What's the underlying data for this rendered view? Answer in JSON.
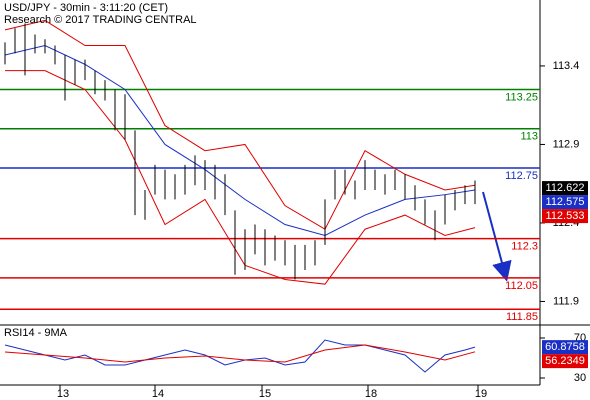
{
  "chart_data": {
    "type": "ohlc",
    "title": "USD/JPY - 30min - 3:11:20 (CET)",
    "subtitle": "Research © 2017 TRADING CENTRAL",
    "bar_color": "#000000",
    "x": [
      0,
      1,
      2,
      3,
      4,
      5,
      6,
      7,
      8,
      9,
      10,
      11,
      12,
      13,
      14,
      15,
      16,
      17,
      18,
      19,
      20,
      21,
      22,
      23,
      24,
      25,
      26,
      27,
      28,
      29,
      30,
      31,
      32,
      33,
      34,
      35,
      36,
      37,
      38,
      39,
      40,
      41,
      42,
      43,
      44,
      45,
      46,
      47
    ],
    "high": [
      113.55,
      113.64,
      113.67,
      113.6,
      113.57,
      113.53,
      113.47,
      113.44,
      113.44,
      113.37,
      113.31,
      113.25,
      113.22,
      112.99,
      112.61,
      112.77,
      112.74,
      112.71,
      112.77,
      112.83,
      112.8,
      112.77,
      112.71,
      112.48,
      112.36,
      112.39,
      112.36,
      112.32,
      112.29,
      112.26,
      112.26,
      112.29,
      112.55,
      112.74,
      112.74,
      112.67,
      112.8,
      112.74,
      112.71,
      112.74,
      112.71,
      112.64,
      112.55,
      112.48,
      112.58,
      112.61,
      112.64,
      112.67
    ],
    "low": [
      113.41,
      113.48,
      113.34,
      113.48,
      113.48,
      113.41,
      113.18,
      113.28,
      113.31,
      113.22,
      113.18,
      112.99,
      112.93,
      112.45,
      112.42,
      112.58,
      112.55,
      112.55,
      112.58,
      112.64,
      112.61,
      112.55,
      112.45,
      112.07,
      112.1,
      112.2,
      112.13,
      112.16,
      112.13,
      112.04,
      112.1,
      112.13,
      112.26,
      112.55,
      112.58,
      112.55,
      112.61,
      112.61,
      112.58,
      112.61,
      112.55,
      112.48,
      112.39,
      112.29,
      112.39,
      112.48,
      112.52,
      112.52
    ],
    "overlays": [
      {
        "color": "#e00000",
        "x": [
          0,
          4,
          8,
          12,
          16,
          20,
          24,
          28,
          32,
          36,
          40,
          44,
          47
        ],
        "values": [
          113.63,
          113.69,
          113.53,
          113.53,
          113.02,
          112.86,
          112.9,
          112.51,
          112.36,
          112.86,
          112.71,
          112.61,
          112.64
        ]
      },
      {
        "color": "#1a2fc4",
        "x": [
          0,
          4,
          8,
          12,
          16,
          20,
          24,
          28,
          32,
          36,
          40,
          44,
          47
        ],
        "values": [
          113.47,
          113.53,
          113.41,
          113.25,
          112.9,
          112.74,
          112.55,
          112.39,
          112.32,
          112.45,
          112.55,
          112.58,
          112.61
        ]
      },
      {
        "color": "#e00000",
        "x": [
          0,
          4,
          8,
          12,
          16,
          20,
          24,
          28,
          32,
          36,
          40,
          44,
          47
        ],
        "values": [
          113.37,
          113.37,
          113.25,
          112.93,
          112.39,
          112.55,
          112.13,
          112.04,
          112.01,
          112.36,
          112.45,
          112.32,
          112.37
        ]
      }
    ],
    "levels": [
      {
        "value": 113.25,
        "color": "#008000"
      },
      {
        "value": 113,
        "color": "#008000"
      },
      {
        "value": 112.75,
        "color": "#1a2fc4"
      },
      {
        "value": 112.3,
        "color": "#e00000"
      },
      {
        "value": 112.05,
        "color": "#e00000"
      },
      {
        "value": 111.85,
        "color": "#e00000"
      }
    ],
    "markers": [
      {
        "value": 112.622,
        "color": "#000000"
      },
      {
        "value": 112.575,
        "color": "#1a2fc4"
      },
      {
        "value": 112.533,
        "color": "#e00000"
      }
    ],
    "xlim": [
      -0.5,
      53.5
    ],
    "xticks": [
      {
        "value": 5.5,
        "label": "13"
      },
      {
        "value": 15,
        "label": "14"
      },
      {
        "value": 25.7,
        "label": "15"
      },
      {
        "value": 36.3,
        "label": "18"
      },
      {
        "value": 47.3,
        "label": "19"
      }
    ],
    "ylim": [
      111.75,
      113.82
    ],
    "yticks": [
      113.4,
      112.9,
      112.4,
      111.9
    ],
    "rsi": {
      "label": "RSI14 - 9MA",
      "ylim": [
        23,
        83
      ],
      "yticks": [
        70,
        30
      ],
      "series": [
        {
          "color": "#1a2fc4",
          "x": [
            0,
            2,
            4,
            6,
            8,
            10,
            12,
            14,
            16,
            18,
            20,
            22,
            24,
            26,
            28,
            30,
            32,
            34,
            36,
            38,
            40,
            42,
            44,
            46,
            47
          ],
          "values": [
            63,
            58,
            53,
            48,
            53,
            43,
            43,
            48,
            53,
            58,
            53,
            43,
            48,
            50,
            43,
            46,
            68,
            63,
            63,
            58,
            53,
            36,
            53,
            58,
            60.9
          ]
        },
        {
          "color": "#e00000",
          "x": [
            0,
            4,
            8,
            12,
            16,
            20,
            24,
            28,
            32,
            36,
            40,
            44,
            47
          ],
          "values": [
            56,
            53,
            50,
            46,
            50,
            52,
            48,
            46,
            58,
            63,
            56,
            48,
            56.2
          ]
        }
      ],
      "markers": [
        {
          "value": 60.8758,
          "color": "#1a2fc4"
        },
        {
          "value": 56.2349,
          "color": "#e00000"
        }
      ]
    }
  }
}
